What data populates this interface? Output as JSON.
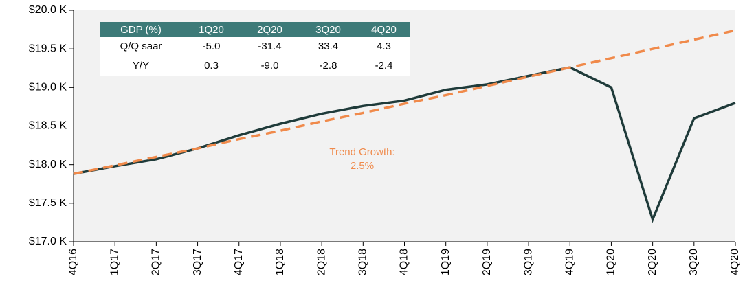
{
  "chart_data": {
    "type": "line",
    "categories": [
      "4Q16",
      "1Q17",
      "2Q17",
      "3Q17",
      "4Q17",
      "1Q18",
      "2Q18",
      "3Q18",
      "4Q18",
      "1Q19",
      "2Q19",
      "3Q19",
      "4Q19",
      "1Q20",
      "2Q20",
      "3Q20",
      "4Q20"
    ],
    "series": [
      {
        "color": "#1f3b3a",
        "dashed": false,
        "values": [
          17.88,
          17.98,
          18.07,
          18.21,
          18.38,
          18.53,
          18.66,
          18.76,
          18.83,
          18.97,
          19.04,
          19.15,
          19.26,
          19.0,
          17.29,
          18.6,
          18.8
        ]
      },
      {
        "color": "#f08a4b",
        "dashed": true,
        "values": [
          17.88,
          17.99,
          18.1,
          18.21,
          18.33,
          18.44,
          18.56,
          18.67,
          18.79,
          18.9,
          19.02,
          19.14,
          19.26,
          19.38,
          19.5,
          19.62,
          19.74
        ]
      }
    ],
    "ylim": [
      17,
      20
    ],
    "yticks": [
      {
        "value": 17,
        "label": "$17.0 K"
      },
      {
        "value": 17.5,
        "label": "$17.5 K"
      },
      {
        "value": 18,
        "label": "$18.0 K"
      },
      {
        "value": 18.5,
        "label": "$18.5 K"
      },
      {
        "value": 19,
        "label": "$19.0 K"
      },
      {
        "value": 19.5,
        "label": "$19.5 K"
      },
      {
        "value": 20,
        "label": "$20.0 K"
      }
    ],
    "annotation": [
      "Trend Growth:",
      "2.5%"
    ],
    "annotation_color": "#f08a4b",
    "plot_background": "#f2f2f2"
  },
  "table": {
    "header": [
      "GDP (%)",
      "1Q20",
      "2Q20",
      "3Q20",
      "4Q20"
    ],
    "header_color": "#3d7a78",
    "rows": [
      [
        "Q/Q saar",
        "-5.0",
        "-31.4",
        "33.4",
        "4.3"
      ],
      [
        "Y/Y",
        "0.3",
        "-9.0",
        "-2.8",
        "-2.4"
      ]
    ]
  }
}
